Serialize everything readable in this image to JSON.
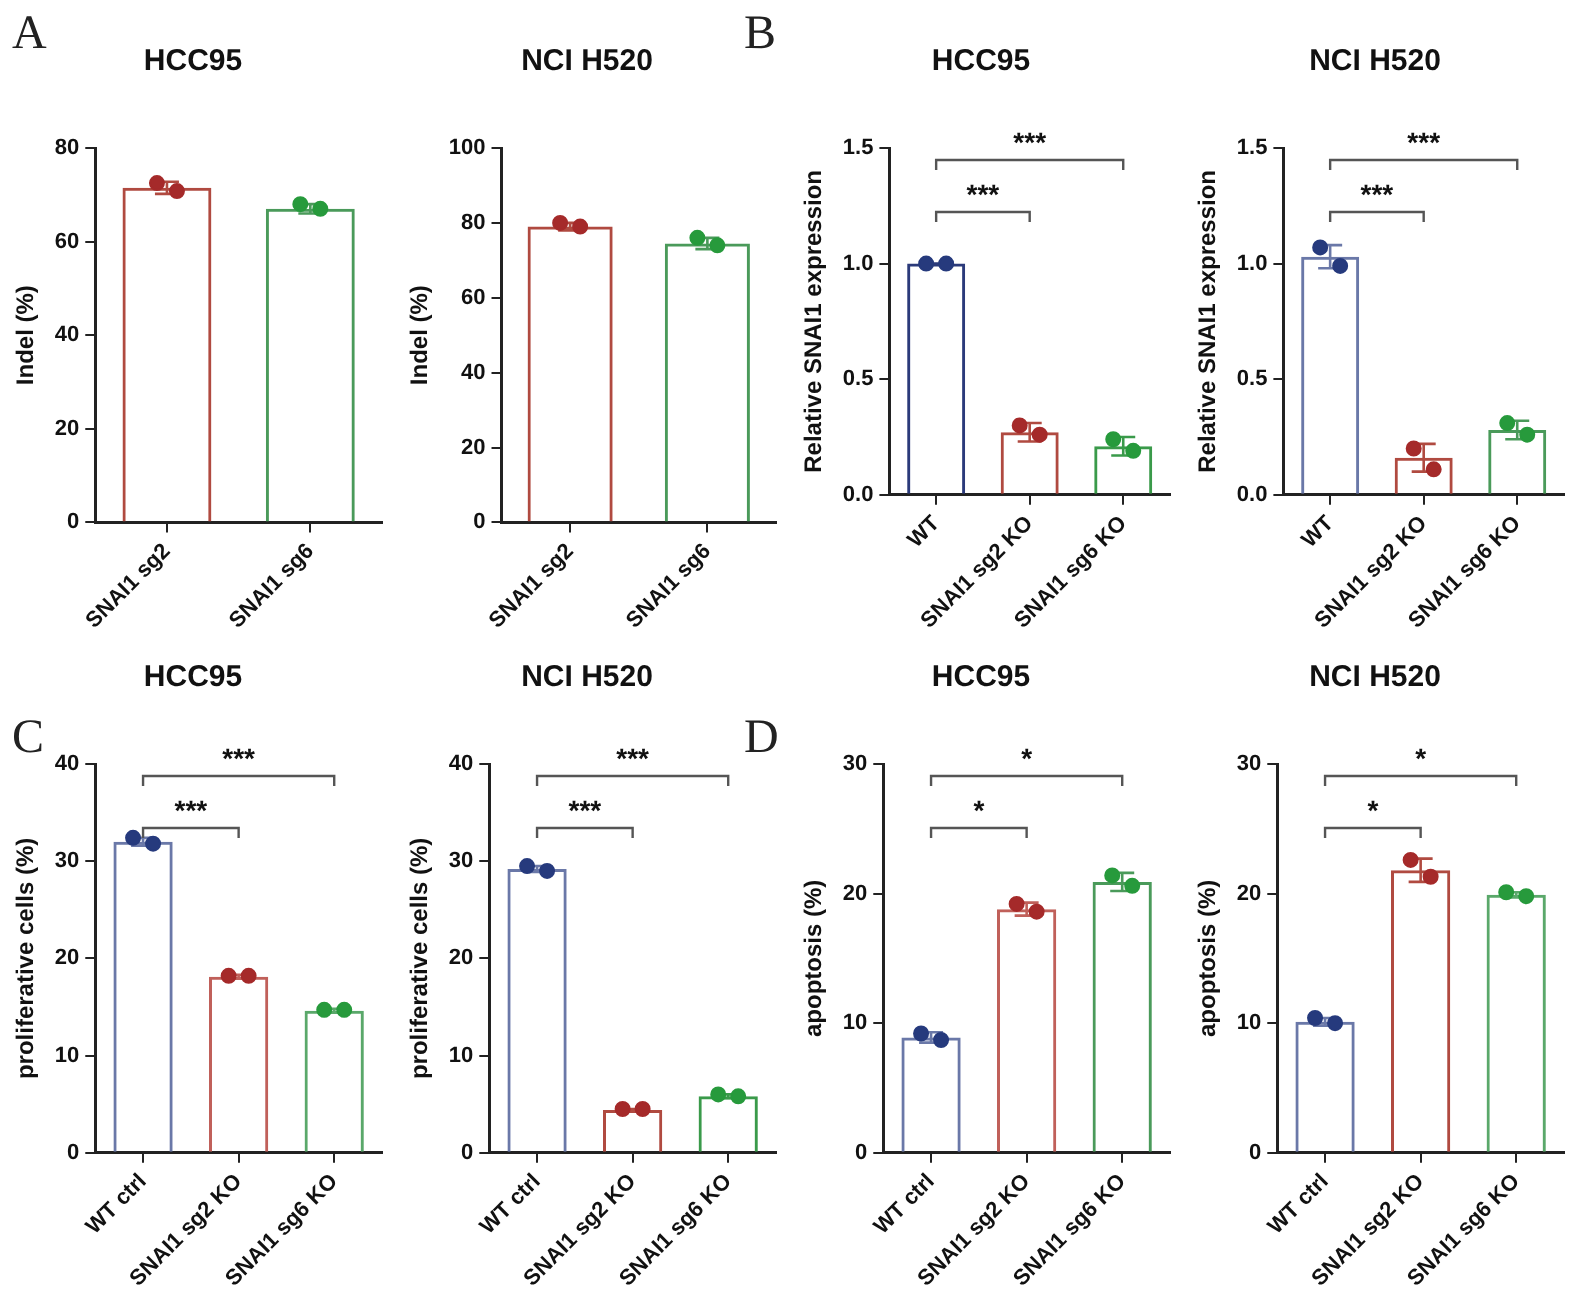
{
  "chart_data": [
    {
      "type": "other",
      "annotations": [
        "A"
      ]
    },
    {
      "type": "bar",
      "title": "HCC95",
      "ylabel": "Indel (%)",
      "categories": [
        "SNAI1 sg2",
        "SNAI1 sg6"
      ],
      "ylim": [
        0,
        80
      ],
      "yticks": [
        0,
        20,
        40,
        60,
        80
      ],
      "grid": false,
      "legend": false,
      "marker": "circle",
      "series": [
        {
          "colors": [
            "#b04a40",
            "#4a9a5a"
          ],
          "values": [
            71.5,
            67
          ],
          "errors": [
            1.3,
            1
          ]
        },
        {
          "type": "scatter",
          "x": [
            "SNAI1 sg2",
            "SNAI1 sg2",
            "SNAI1 sg6",
            "SNAI1 sg6"
          ],
          "values": [
            72.5,
            70.8,
            68,
            67
          ],
          "colors": [
            "#a52a2a",
            "#a52a2a",
            "#279a3c",
            "#279a3c"
          ]
        }
      ]
    },
    {
      "type": "bar",
      "title": "NCI H520",
      "ylabel": "Indel (%)",
      "categories": [
        "SNAI1 sg2",
        "SNAI1 sg6"
      ],
      "ylim": [
        0,
        100
      ],
      "yticks": [
        0,
        20,
        40,
        60,
        80,
        100
      ],
      "grid": false,
      "legend": false,
      "marker": "circle",
      "series": [
        {
          "colors": [
            "#b04a40",
            "#4a9a5a"
          ],
          "values": [
            79,
            74.5
          ],
          "errors": [
            1,
            1.5
          ]
        },
        {
          "type": "scatter",
          "x": [
            "SNAI1 sg2",
            "SNAI1 sg2",
            "SNAI1 sg6",
            "SNAI1 sg6"
          ],
          "values": [
            80,
            79,
            76,
            74
          ],
          "colors": [
            "#a52a2a",
            "#a52a2a",
            "#279a3c",
            "#279a3c"
          ]
        }
      ]
    },
    {
      "type": "other",
      "annotations": [
        "B"
      ]
    },
    {
      "type": "bar",
      "title": "HCC95",
      "ylabel": "Relative SNAI1 expression",
      "categories": [
        "WT",
        "SNAI1 sg2 KO",
        "SNAI1 sg6 KO"
      ],
      "ylim": [
        0,
        1.5
      ],
      "yticks": [
        {
          "value": 0,
          "label": "0.0"
        },
        {
          "value": 0.5,
          "label": "0.5"
        },
        {
          "value": 1,
          "label": "1.0"
        },
        {
          "value": 1.5,
          "label": "1.5"
        }
      ],
      "grid": false,
      "legend": false,
      "marker": "circle",
      "annotations": [
        "***",
        "***"
      ],
      "series": [
        {
          "colors": [
            "#2b3a7a",
            "#b04a40",
            "#3a9a4a"
          ],
          "values": [
            1.0,
            0.27,
            0.21
          ],
          "errors": [
            0,
            0.04,
            0.04
          ]
        },
        {
          "type": "scatter",
          "x": [
            "WT",
            "WT",
            "SNAI1 sg2 KO",
            "SNAI1 sg2 KO",
            "SNAI1 sg6 KO",
            "SNAI1 sg6 KO"
          ],
          "values": [
            1.0,
            1.0,
            0.3,
            0.26,
            0.24,
            0.19
          ],
          "colors": [
            "#263a7d",
            "#263a7d",
            "#a52a2a",
            "#a52a2a",
            "#279a3c",
            "#279a3c"
          ]
        }
      ]
    },
    {
      "type": "bar",
      "title": "NCI H520",
      "ylabel": "Relative SNAI1 expression",
      "categories": [
        "WT",
        "SNAI1 sg2 KO",
        "SNAI1 sg6 KO"
      ],
      "ylim": [
        0,
        1.5
      ],
      "yticks": [
        {
          "value": 0,
          "label": "0.0"
        },
        {
          "value": 0.5,
          "label": "0.5"
        },
        {
          "value": 1,
          "label": "1.0"
        },
        {
          "value": 1.5,
          "label": "1.5"
        }
      ],
      "grid": false,
      "legend": false,
      "marker": "circle",
      "annotations": [
        "***",
        "***"
      ],
      "series": [
        {
          "colors": [
            "#6a78a8",
            "#b04a40",
            "#4a9a5a"
          ],
          "values": [
            1.03,
            0.16,
            0.28
          ],
          "errors": [
            0.05,
            0.06,
            0.04
          ]
        },
        {
          "type": "scatter",
          "x": [
            "WT",
            "WT",
            "SNAI1 sg2 KO",
            "SNAI1 sg2 KO",
            "SNAI1 sg6 KO",
            "SNAI1 sg6 KO"
          ],
          "values": [
            1.07,
            0.99,
            0.2,
            0.11,
            0.31,
            0.26
          ],
          "colors": [
            "#263a7d",
            "#263a7d",
            "#a52a2a",
            "#a52a2a",
            "#279a3c",
            "#279a3c"
          ]
        }
      ]
    },
    {
      "type": "other",
      "annotations": [
        "C"
      ]
    },
    {
      "type": "bar",
      "title": "HCC95",
      "ylabel": "proliferative cells (%)",
      "categories": [
        "WT ctrl",
        "SNAI1 sg2 KO",
        "SNAI1 sg6 KO"
      ],
      "ylim": [
        0,
        40
      ],
      "yticks": [
        0,
        10,
        20,
        30,
        40
      ],
      "grid": false,
      "legend": false,
      "marker": "circle",
      "annotations": [
        "***",
        "***"
      ],
      "series": [
        {
          "colors": [
            "#6a78a8",
            "#c0605a",
            "#5aa86a"
          ],
          "values": [
            32,
            18.1,
            14.6
          ],
          "errors": [
            0.4,
            0.2,
            0.2
          ]
        },
        {
          "type": "scatter",
          "x": [
            "WT ctrl",
            "WT ctrl",
            "SNAI1 sg2 KO",
            "SNAI1 sg2 KO",
            "SNAI1 sg6 KO",
            "SNAI1 sg6 KO"
          ],
          "values": [
            32.4,
            31.8,
            18.2,
            18.2,
            14.7,
            14.7
          ],
          "colors": [
            "#263a7d",
            "#263a7d",
            "#a52a2a",
            "#a52a2a",
            "#279a3c",
            "#279a3c"
          ]
        }
      ]
    },
    {
      "type": "bar",
      "title": "NCI H520",
      "ylabel": "proliferative cells (%)",
      "categories": [
        "WT ctrl",
        "SNAI1 sg2 KO",
        "SNAI1 sg6 KO"
      ],
      "ylim": [
        0,
        40
      ],
      "yticks": [
        0,
        10,
        20,
        30,
        40
      ],
      "grid": false,
      "legend": false,
      "marker": "circle",
      "annotations": [
        "***",
        "***"
      ],
      "series": [
        {
          "colors": [
            "#6a78a8",
            "#b04a40",
            "#3a9a4a"
          ],
          "values": [
            29.2,
            4.4,
            5.8
          ],
          "errors": [
            0.3,
            0.1,
            0.2
          ]
        },
        {
          "type": "scatter",
          "x": [
            "WT ctrl",
            "WT ctrl",
            "SNAI1 sg2 KO",
            "SNAI1 sg2 KO",
            "SNAI1 sg6 KO",
            "SNAI1 sg6 KO"
          ],
          "values": [
            29.5,
            29,
            4.5,
            4.5,
            6,
            5.8
          ],
          "colors": [
            "#263a7d",
            "#263a7d",
            "#a52a2a",
            "#a52a2a",
            "#279a3c",
            "#279a3c"
          ]
        }
      ]
    },
    {
      "type": "other",
      "annotations": [
        "D"
      ]
    },
    {
      "type": "bar",
      "title": "HCC95",
      "ylabel": "apoptosis (%)",
      "categories": [
        "WT ctrl",
        "SNAI1 sg2 KO",
        "SNAI1 sg6 KO"
      ],
      "ylim": [
        0,
        30
      ],
      "yticks": [
        0,
        10,
        20,
        30
      ],
      "grid": false,
      "legend": false,
      "marker": "circle",
      "annotations": [
        "*",
        "*"
      ],
      "series": [
        {
          "colors": [
            "#6a78a8",
            "#c0605a",
            "#4a9a5a"
          ],
          "values": [
            8.9,
            18.8,
            20.9
          ],
          "errors": [
            0.4,
            0.5,
            0.7
          ]
        },
        {
          "type": "scatter",
          "x": [
            "WT ctrl",
            "WT ctrl",
            "SNAI1 sg2 KO",
            "SNAI1 sg2 KO",
            "SNAI1 sg6 KO",
            "SNAI1 sg6 KO"
          ],
          "values": [
            9.2,
            8.7,
            19.2,
            18.6,
            21.4,
            20.6
          ],
          "colors": [
            "#263a7d",
            "#263a7d",
            "#a52a2a",
            "#a52a2a",
            "#279a3c",
            "#279a3c"
          ]
        }
      ]
    },
    {
      "type": "bar",
      "title": "NCI H520",
      "ylabel": "apoptosis (%)",
      "categories": [
        "WT ctrl",
        "SNAI1 sg2 KO",
        "SNAI1 sg6 KO"
      ],
      "ylim": [
        0,
        30
      ],
      "yticks": [
        0,
        10,
        20,
        30
      ],
      "grid": false,
      "legend": false,
      "marker": "circle",
      "annotations": [
        "*",
        "*"
      ],
      "series": [
        {
          "colors": [
            "#6a78a8",
            "#b04a40",
            "#5aa86a"
          ],
          "values": [
            10.1,
            21.8,
            19.9
          ],
          "errors": [
            0.3,
            0.9,
            0.2
          ]
        },
        {
          "type": "scatter",
          "x": [
            "WT ctrl",
            "WT ctrl",
            "SNAI1 sg2 KO",
            "SNAI1 sg2 KO",
            "SNAI1 sg6 KO",
            "SNAI1 sg6 KO"
          ],
          "values": [
            10.4,
            10,
            22.6,
            21.3,
            20.1,
            19.8
          ],
          "colors": [
            "#263a7d",
            "#263a7d",
            "#a52a2a",
            "#a52a2a",
            "#279a3c",
            "#279a3c"
          ]
        }
      ]
    }
  ]
}
